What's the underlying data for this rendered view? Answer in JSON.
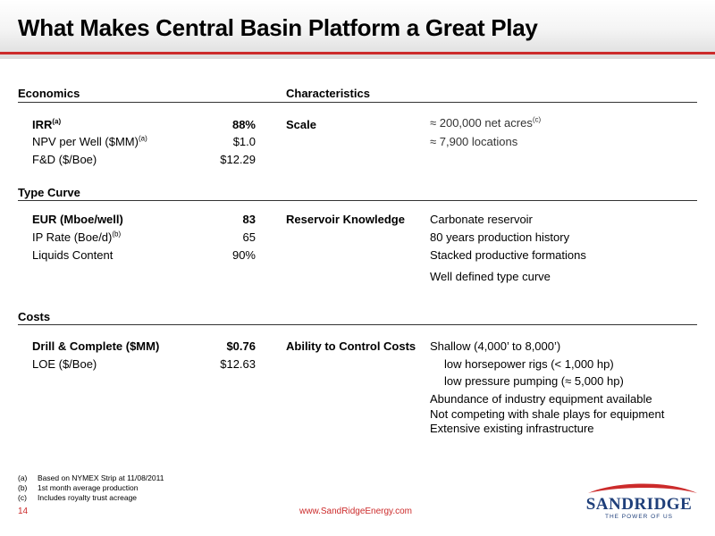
{
  "title": "What Makes Central Basin Platform a Great Play",
  "sections": {
    "economics_header": "Economics",
    "characteristics_header": "Characteristics",
    "type_curve_header": "Type Curve",
    "costs_header": "Costs"
  },
  "economics": {
    "irr_label": "IRR",
    "irr_sup": "(a)",
    "irr_value": "88%",
    "npv_label": "NPV per Well ($MM)",
    "npv_sup": "(a)",
    "npv_value": "$1.0",
    "fd_label": "F&D ($/Boe)",
    "fd_value": "$12.29"
  },
  "characteristics": {
    "scale_label": "Scale",
    "scale_line1": "≈ 200,000 net acres",
    "scale_line1_sup": "(c)",
    "scale_line2": "≈ 7,900 locations"
  },
  "type_curve": {
    "eur_label": "EUR (Mboe/well)",
    "eur_value": "83",
    "ip_label": "IP Rate (Boe/d)",
    "ip_sup": "(b)",
    "ip_value": "65",
    "liquids_label": "Liquids Content",
    "liquids_value": "90%"
  },
  "reservoir": {
    "label": "Reservoir Knowledge",
    "items": [
      "Carbonate reservoir",
      "80 years production history",
      "Stacked productive formations",
      "Well defined type curve"
    ]
  },
  "costs": {
    "dc_label": "Drill & Complete ($MM)",
    "dc_value": "$0.76",
    "loe_label": "LOE ($/Boe)",
    "loe_value": "$12.63"
  },
  "control_costs": {
    "label": "Ability to Control Costs",
    "line1": "Shallow (4,000’ to 8,000’)",
    "line2": "low horsepower rigs (< 1,000 hp)",
    "line3": "low pressure pumping (≈ 5,000 hp)",
    "line4": "Abundance of industry equipment available",
    "line5": "Not competing with shale plays for equipment",
    "line6": "Extensive existing infrastructure"
  },
  "footnotes": [
    {
      "mark": "(a)",
      "text": "Based on NYMEX Strip at 11/08/2011"
    },
    {
      "mark": "(b)",
      "text": "1st month average production"
    },
    {
      "mark": "(c)",
      "text": "Includes royalty trust acreage"
    }
  ],
  "footer": {
    "page_number": "14",
    "url": "www.SandRidgeEnergy.com",
    "logo_name": "SANDRIDGE",
    "logo_tagline": "THE POWER OF US"
  },
  "colors": {
    "accent": "#cc2b2b",
    "logo_blue": "#1f3f7a"
  }
}
